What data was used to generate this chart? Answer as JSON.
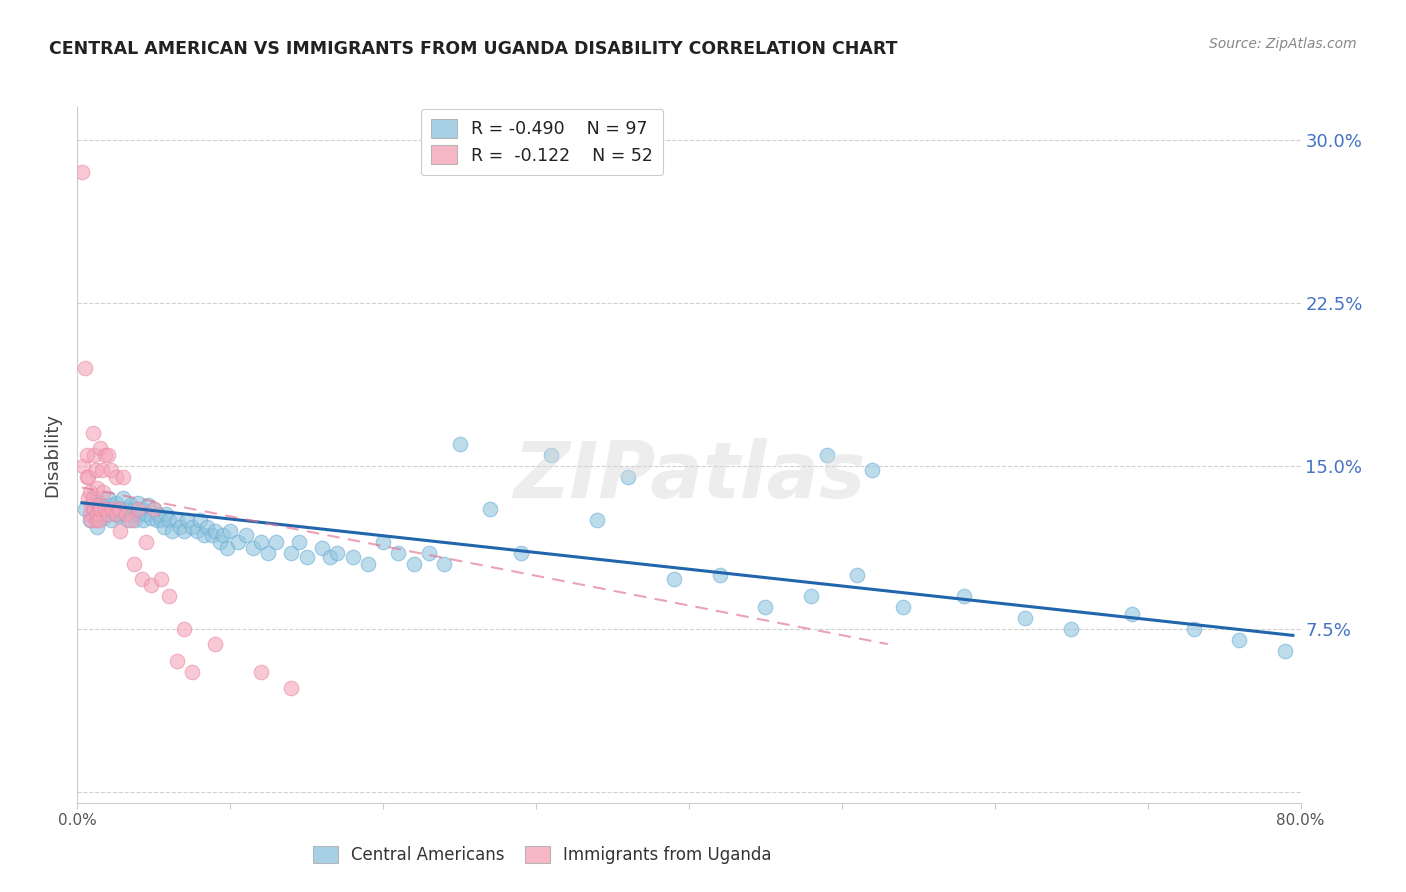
{
  "title": "CENTRAL AMERICAN VS IMMIGRANTS FROM UGANDA DISABILITY CORRELATION CHART",
  "source": "Source: ZipAtlas.com",
  "ylabel": "Disability",
  "ytick_labels": [
    "",
    "7.5%",
    "15.0%",
    "22.5%",
    "30.0%"
  ],
  "yticks": [
    0.0,
    0.075,
    0.15,
    0.225,
    0.3
  ],
  "xlim": [
    0.0,
    0.8
  ],
  "ylim": [
    -0.005,
    0.315
  ],
  "blue_color": "#92c5de",
  "pink_color": "#f4a5b8",
  "trendline_blue_color": "#2166ac",
  "trendline_pink_color": "#e07090",
  "watermark": "ZIPatlas",
  "blue_scatter_x": [
    0.005,
    0.008,
    0.01,
    0.01,
    0.012,
    0.013,
    0.015,
    0.015,
    0.017,
    0.018,
    0.02,
    0.02,
    0.022,
    0.022,
    0.023,
    0.025,
    0.025,
    0.027,
    0.028,
    0.03,
    0.03,
    0.032,
    0.033,
    0.035,
    0.035,
    0.037,
    0.038,
    0.04,
    0.04,
    0.042,
    0.043,
    0.045,
    0.046,
    0.048,
    0.05,
    0.052,
    0.053,
    0.055,
    0.057,
    0.058,
    0.06,
    0.062,
    0.065,
    0.067,
    0.07,
    0.072,
    0.075,
    0.078,
    0.08,
    0.083,
    0.085,
    0.088,
    0.09,
    0.093,
    0.095,
    0.098,
    0.1,
    0.105,
    0.11,
    0.115,
    0.12,
    0.125,
    0.13,
    0.14,
    0.145,
    0.15,
    0.16,
    0.165,
    0.17,
    0.18,
    0.19,
    0.2,
    0.21,
    0.22,
    0.23,
    0.24,
    0.25,
    0.27,
    0.29,
    0.31,
    0.34,
    0.36,
    0.39,
    0.42,
    0.45,
    0.48,
    0.51,
    0.54,
    0.58,
    0.62,
    0.65,
    0.69,
    0.73,
    0.76,
    0.79,
    0.49,
    0.52
  ],
  "blue_scatter_y": [
    0.13,
    0.125,
    0.132,
    0.128,
    0.135,
    0.122,
    0.128,
    0.133,
    0.126,
    0.13,
    0.135,
    0.128,
    0.13,
    0.125,
    0.132,
    0.128,
    0.133,
    0.127,
    0.13,
    0.135,
    0.128,
    0.13,
    0.125,
    0.132,
    0.128,
    0.13,
    0.125,
    0.133,
    0.128,
    0.13,
    0.125,
    0.128,
    0.132,
    0.126,
    0.13,
    0.125,
    0.128,
    0.125,
    0.122,
    0.128,
    0.125,
    0.12,
    0.125,
    0.122,
    0.12,
    0.125,
    0.122,
    0.12,
    0.125,
    0.118,
    0.122,
    0.118,
    0.12,
    0.115,
    0.118,
    0.112,
    0.12,
    0.115,
    0.118,
    0.112,
    0.115,
    0.11,
    0.115,
    0.11,
    0.115,
    0.108,
    0.112,
    0.108,
    0.11,
    0.108,
    0.105,
    0.115,
    0.11,
    0.105,
    0.11,
    0.105,
    0.16,
    0.13,
    0.11,
    0.155,
    0.125,
    0.145,
    0.098,
    0.1,
    0.085,
    0.09,
    0.1,
    0.085,
    0.09,
    0.08,
    0.075,
    0.082,
    0.075,
    0.07,
    0.065,
    0.155,
    0.148
  ],
  "pink_scatter_x": [
    0.003,
    0.004,
    0.005,
    0.006,
    0.006,
    0.007,
    0.007,
    0.008,
    0.008,
    0.009,
    0.009,
    0.01,
    0.01,
    0.011,
    0.011,
    0.012,
    0.012,
    0.013,
    0.013,
    0.014,
    0.014,
    0.015,
    0.015,
    0.016,
    0.017,
    0.018,
    0.018,
    0.02,
    0.02,
    0.022,
    0.023,
    0.025,
    0.025,
    0.027,
    0.028,
    0.03,
    0.032,
    0.035,
    0.037,
    0.04,
    0.042,
    0.045,
    0.048,
    0.05,
    0.055,
    0.06,
    0.065,
    0.07,
    0.075,
    0.09,
    0.12,
    0.14
  ],
  "pink_scatter_y": [
    0.285,
    0.15,
    0.195,
    0.145,
    0.155,
    0.135,
    0.145,
    0.128,
    0.138,
    0.125,
    0.132,
    0.165,
    0.135,
    0.155,
    0.13,
    0.148,
    0.125,
    0.14,
    0.128,
    0.132,
    0.125,
    0.158,
    0.13,
    0.148,
    0.138,
    0.155,
    0.13,
    0.155,
    0.128,
    0.148,
    0.13,
    0.145,
    0.128,
    0.13,
    0.12,
    0.145,
    0.128,
    0.125,
    0.105,
    0.13,
    0.098,
    0.115,
    0.095,
    0.13,
    0.098,
    0.09,
    0.06,
    0.075,
    0.055,
    0.068,
    0.055,
    0.048
  ],
  "blue_trend_x": [
    0.003,
    0.795
  ],
  "blue_trend_y": [
    0.133,
    0.072
  ],
  "pink_trend_x": [
    0.003,
    0.53
  ],
  "pink_trend_y": [
    0.14,
    0.068
  ]
}
